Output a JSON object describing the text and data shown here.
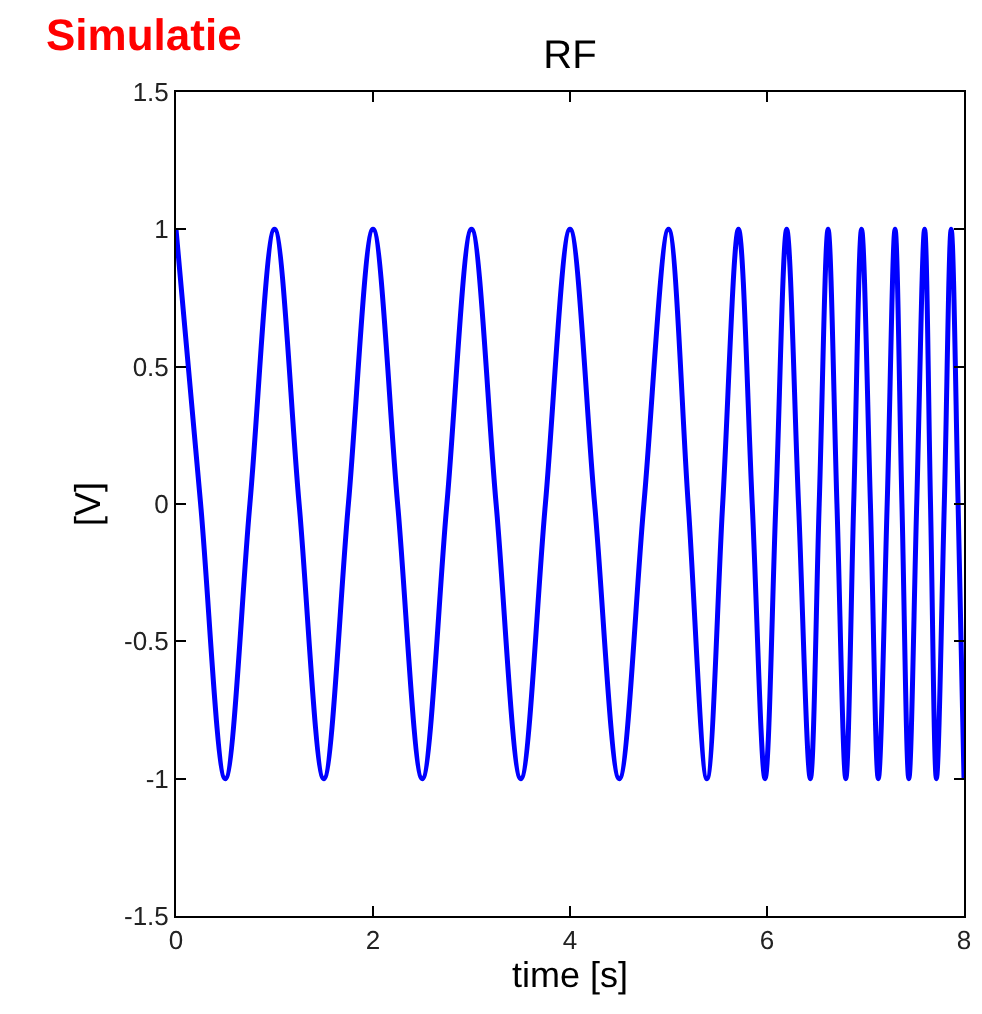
{
  "chart_data": {
    "type": "line",
    "title": "RF",
    "xlabel": "time [s]",
    "ylabel": "[V]",
    "annotations": [
      "Simulatie"
    ],
    "xlim": [
      0,
      8
    ],
    "xticks": [
      0,
      2,
      4,
      6,
      8
    ],
    "ylim": [
      -1.5,
      1.5
    ],
    "yticks": [
      -1.5,
      -1,
      -0.5,
      0,
      0.5,
      1,
      1.5
    ],
    "grid": false,
    "marker": "none",
    "line_style": "solid",
    "x": [
      0,
      0.25,
      0.5,
      0.75,
      1,
      1.25,
      1.5,
      1.75,
      2,
      2.25,
      2.5,
      2.75,
      3,
      3.25,
      3.5,
      3.75,
      4,
      4.25,
      4.5,
      4.75,
      5,
      5.2,
      5.39,
      5.55,
      5.71,
      5.85,
      5.98,
      6.09,
      6.2,
      6.32,
      6.44,
      6.53,
      6.62,
      6.71,
      6.8,
      6.88,
      6.96,
      7.05,
      7.13,
      7.22,
      7.3,
      7.37,
      7.44,
      7.52,
      7.6,
      7.66,
      7.72,
      7.8,
      7.87,
      7.94,
      8
    ],
    "series": [
      {
        "color": "#0000ff",
        "values": [
          1,
          0,
          -1,
          0,
          1,
          0,
          -1,
          0,
          1,
          0,
          -1,
          0,
          1,
          0,
          -1,
          0,
          1,
          0,
          -1,
          0,
          1,
          0,
          -1,
          0,
          1,
          0,
          -1,
          0,
          1,
          0,
          -1,
          0,
          1,
          0,
          -1,
          0,
          1,
          0,
          -1,
          0,
          1,
          0,
          -1,
          0,
          1,
          0,
          -1,
          0,
          1,
          0,
          -1
        ]
      }
    ]
  }
}
